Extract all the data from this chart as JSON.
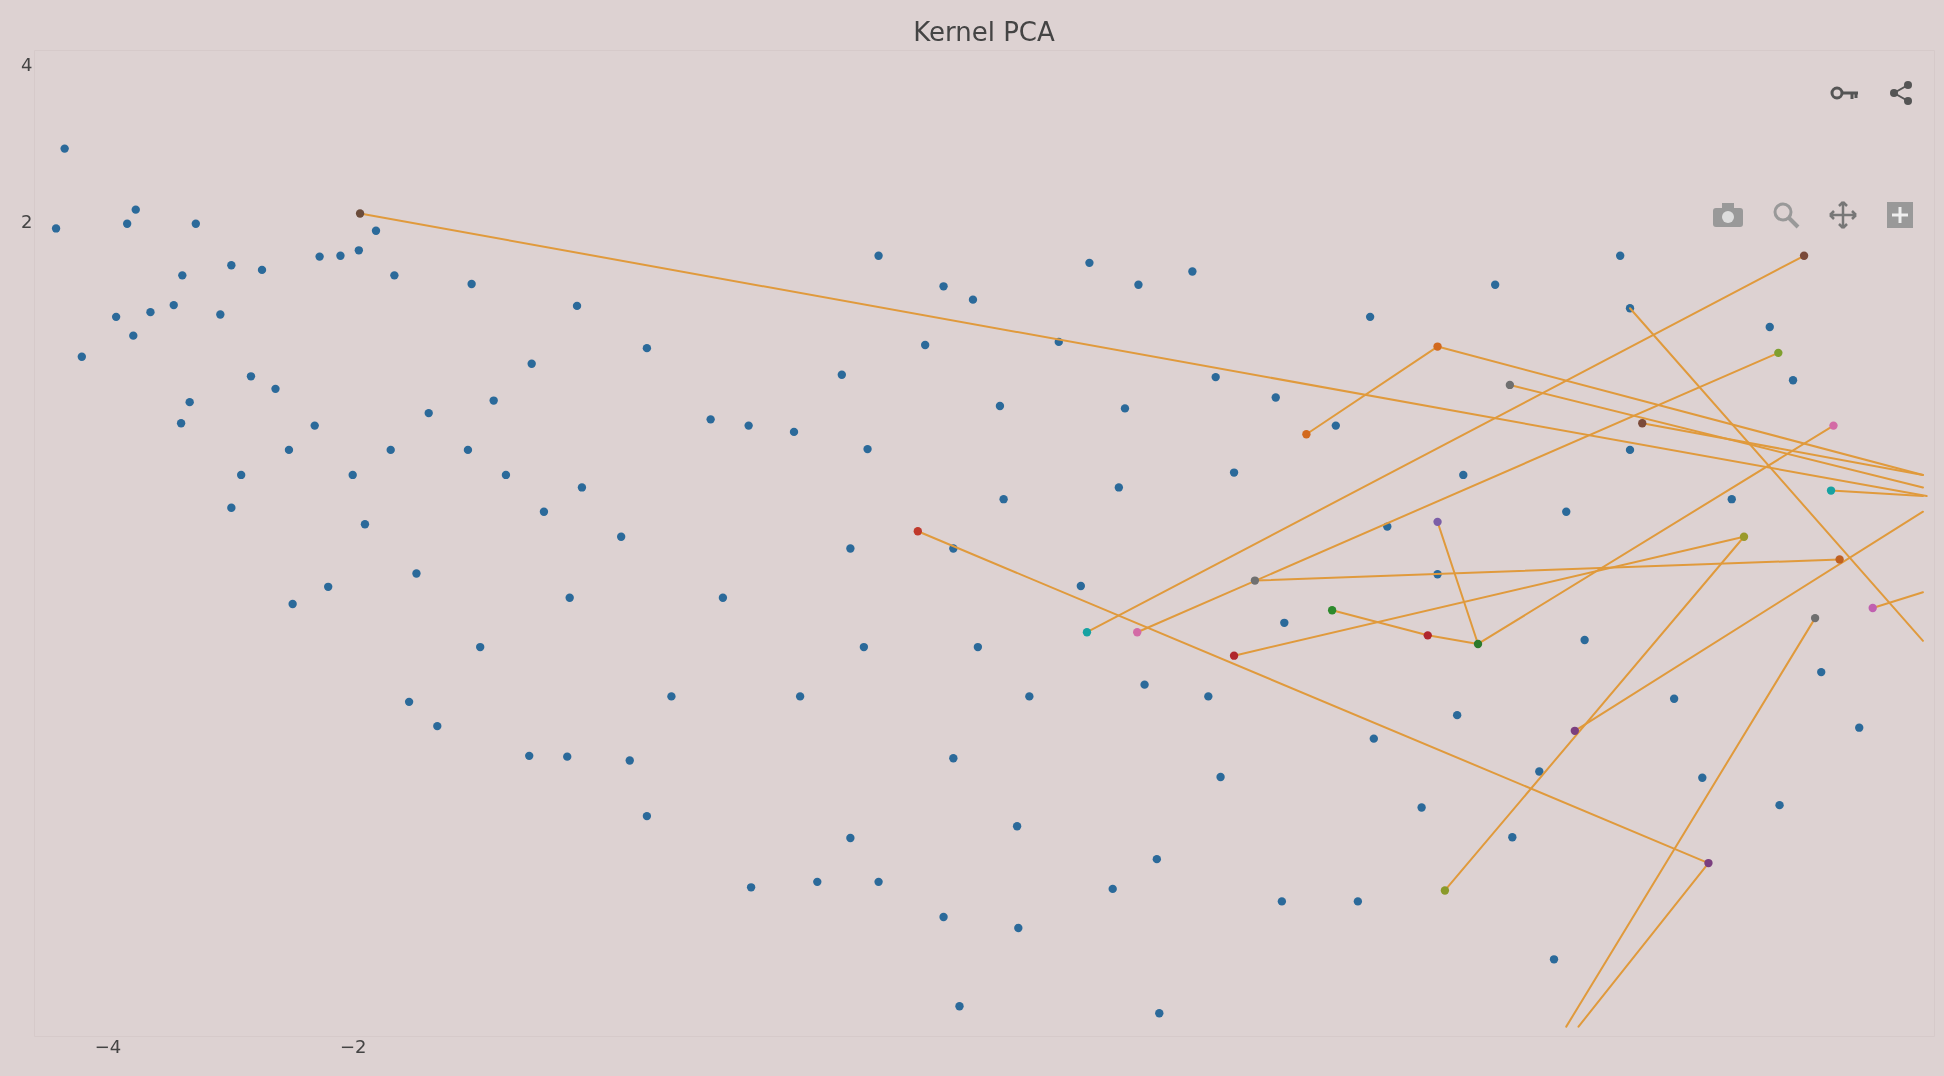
{
  "chart_data": {
    "type": "scatter",
    "title": "Kernel PCA",
    "xlim": [
      -4.6,
      10.9
    ],
    "ylim": [
      -8.4,
      4.2
    ],
    "xticks": [
      -4,
      -2
    ],
    "yticks": [
      2,
      4
    ],
    "marker": "circle",
    "series": [
      {
        "color": "#2b6a9a",
        "x": [
          -4.35,
          -4.42,
          -3.77,
          -3.84,
          -3.28,
          -4.21,
          -3.93,
          -3.79,
          -3.65,
          -3.46,
          -3.39,
          -3.4,
          -3.33,
          -2.99,
          -2.74,
          -3.08,
          -2.99,
          -2.91,
          -2.49,
          -2.2,
          -2.27,
          -2.1,
          -1.81,
          -1.66,
          -1.03,
          -1.95,
          -2.63,
          -2.31,
          -2.0,
          -1.69,
          -1.38,
          -1.06,
          -0.75,
          -0.44,
          -0.13,
          0.19,
          0.4,
          -0.17,
          -0.54,
          -0.85,
          -1.54,
          -1.31,
          -0.56,
          -0.25,
          0.26,
          0.4,
          0.92,
          1.23,
          1.6,
          2.2,
          1.99,
          2.29,
          2.67,
          2.82,
          3.06,
          3.28,
          3.76,
          4.01,
          4.41,
          4.85,
          5.04,
          4.3,
          4.25,
          3.94,
          4.46,
          4.98,
          5.19,
          5.53,
          6.3,
          7.32,
          8.34,
          8.42,
          9.56,
          9.75,
          8.42,
          9.25,
          7.9,
          9.98,
          10.29,
          9.64,
          9.01,
          7.8,
          7.46,
          6.72,
          6.2,
          5.58,
          4.58,
          4.2,
          3.43,
          2.95,
          2.82,
          2.29,
          1.79,
          1.25,
          2.06,
          2.9,
          3.42,
          4.56,
          5.08,
          6.33,
          7.01,
          7.68,
          8.78,
          8.05,
          6.85,
          6.44,
          7.06,
          6.02,
          5.6,
          0.6,
          1.65,
          2.17,
          3.1,
          3.52,
          1.02,
          2.06,
          2.9,
          3.31,
          -0.23,
          -0.96,
          -1.48,
          -1.9,
          -2.52,
          -2.83
        ],
        "values": [
          2.94,
          1.92,
          2.16,
          1.98,
          1.98,
          0.28,
          0.79,
          0.55,
          0.85,
          0.94,
          1.32,
          -0.57,
          -0.3,
          1.45,
          1.39,
          0.82,
          -1.65,
          -1.23,
          -2.88,
          -2.66,
          1.56,
          1.57,
          1.89,
          1.32,
          1.21,
          1.64,
          -0.13,
          -0.6,
          -1.23,
          -0.91,
          -0.44,
          -0.91,
          -1.23,
          -1.7,
          -1.39,
          -2.02,
          0.39,
          0.93,
          0.19,
          -0.28,
          -4.13,
          -4.44,
          -4.82,
          -4.83,
          -4.88,
          -5.59,
          -0.52,
          -0.6,
          -0.68,
          -0.9,
          0.05,
          1.57,
          0.43,
          1.18,
          1.01,
          -0.35,
          0.47,
          1.48,
          1.2,
          1.37,
          0.02,
          -0.38,
          -1.39,
          -2.65,
          -3.91,
          -4.06,
          -1.2,
          -0.24,
          0.79,
          1.2,
          1.57,
          0.9,
          0.66,
          -0.02,
          -0.91,
          -1.54,
          -1.7,
          -3.75,
          -4.46,
          -5.45,
          -5.1,
          -7.42,
          -5.86,
          -5.48,
          -6.68,
          -6.68,
          -8.11,
          -6.52,
          -7.02,
          -8.02,
          -6.88,
          -6.43,
          -6.43,
          -6.5,
          -5.87,
          -4.85,
          -5.72,
          -6.14,
          -5.09,
          -4.6,
          -4.3,
          -5.02,
          -4.09,
          -3.34,
          -2.5,
          -1.89,
          -1.23,
          -0.6,
          -3.12,
          -4.06,
          -4.06,
          -3.43,
          -3.43,
          -4.06,
          -2.8,
          -2.17,
          -2.17,
          -1.54,
          -2.8,
          -3.43,
          -2.49,
          -1.86,
          -0.91,
          0.03
        ]
      },
      {
        "type": "line",
        "marker": "none",
        "color": "#e09a3c",
        "x": [
          -1.94,
          10.84,
          null,
          2.61,
          9.06,
          null,
          3.99,
          9.84,
          null,
          4.4,
          9.63,
          null,
          5.78,
          6.85,
          10.81,
          null,
          7.44,
          10.81,
          null,
          8.42,
          10.81,
          null,
          6.85,
          7.18,
          10.08,
          null,
          5.99,
          6.77,
          7.18,
          null,
          5.36,
          10.13,
          null,
          5.19,
          9.35,
          null,
          7.97,
          10.81,
          null,
          6.91,
          9.35,
          null,
          9.93,
          7.9,
          null,
          9.06,
          8.0,
          null,
          8.52,
          10.81,
          null,
          10.4,
          10.81,
          null,
          10.06,
          10.81
        ],
        "values": [
          2.11,
          -1.5,
          null,
          -1.95,
          -6.19,
          null,
          -3.24,
          1.57,
          null,
          -3.24,
          0.33,
          null,
          -0.71,
          0.41,
          -1.23,
          null,
          -0.08,
          -1.39,
          null,
          0.9,
          -3.35,
          null,
          -1.83,
          -3.39,
          -0.6,
          null,
          -2.96,
          -3.28,
          -3.39,
          null,
          -2.58,
          -2.31,
          null,
          -3.54,
          -2.02,
          null,
          -4.5,
          -1.7,
          null,
          -6.54,
          -2.02,
          null,
          -3.06,
          -8.28,
          null,
          -6.19,
          -8.28,
          null,
          -0.57,
          -1.23,
          null,
          -2.93,
          -2.73,
          null,
          -1.43,
          -1.5
        ]
      },
      {
        "x": [
          -1.94,
          2.61,
          9.06,
          3.99,
          9.84,
          4.4,
          9.63,
          5.78,
          6.85,
          7.44,
          6.85,
          7.18,
          5.99,
          6.77,
          10.08,
          5.36,
          10.13,
          5.19,
          9.35,
          7.97,
          6.91,
          9.93,
          8.52,
          10.4,
          10.06
        ],
        "values": [
          2.11,
          -1.95,
          -6.19,
          -3.24,
          1.57,
          -3.24,
          0.33,
          -0.71,
          0.41,
          -0.08,
          -1.83,
          -3.39,
          -2.96,
          -3.28,
          -0.6,
          -2.58,
          -2.31,
          -3.54,
          -2.02,
          -4.5,
          -6.54,
          -3.06,
          -0.57,
          -2.93,
          -1.43
        ],
        "colors": [
          "#6b4c3b",
          "#c0392b",
          "#7b3f7f",
          "#17a2a2",
          "#7a4a3a",
          "#d36ba6",
          "#7f9f2f",
          "#d2691e",
          "#d2691e",
          "#6f6f6f",
          "#7b5ea7",
          "#2c7a2c",
          "#2c8a2c",
          "#b0272d",
          "#d36ba6",
          "#707070",
          "#c06020",
          "#b0272d",
          "#9a9a2a",
          "#7b3f7f",
          "#8a9a2a",
          "#6f6f6f",
          "#7a4a3a",
          "#c060b0",
          "#17a2a2"
        ]
      }
    ]
  }
}
